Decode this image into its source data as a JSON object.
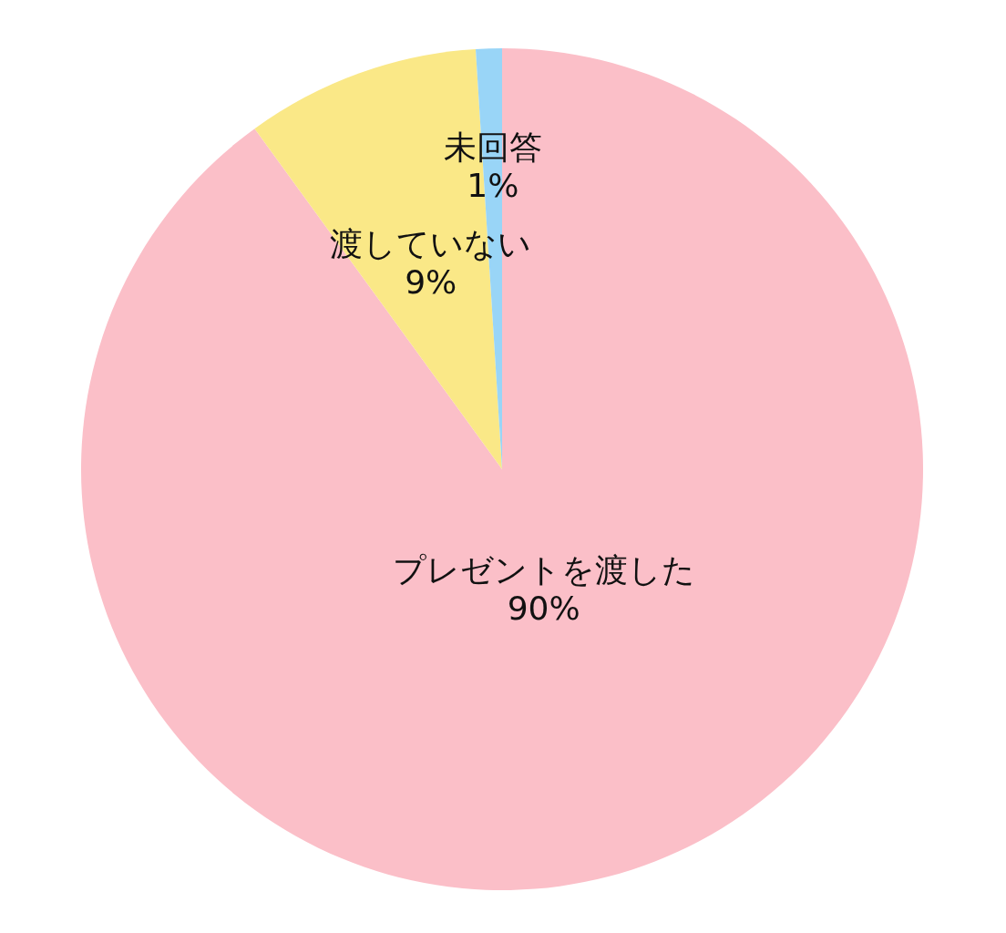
{
  "chart_data": {
    "type": "pie",
    "categories": [
      "プレゼントを渡した",
      "渡していない",
      "未回答"
    ],
    "values": [
      90,
      9,
      1
    ],
    "colors": [
      "#fbbfc8",
      "#fae887",
      "#99d5f7"
    ],
    "value_labels": [
      "90%",
      "9%",
      "1%"
    ]
  }
}
